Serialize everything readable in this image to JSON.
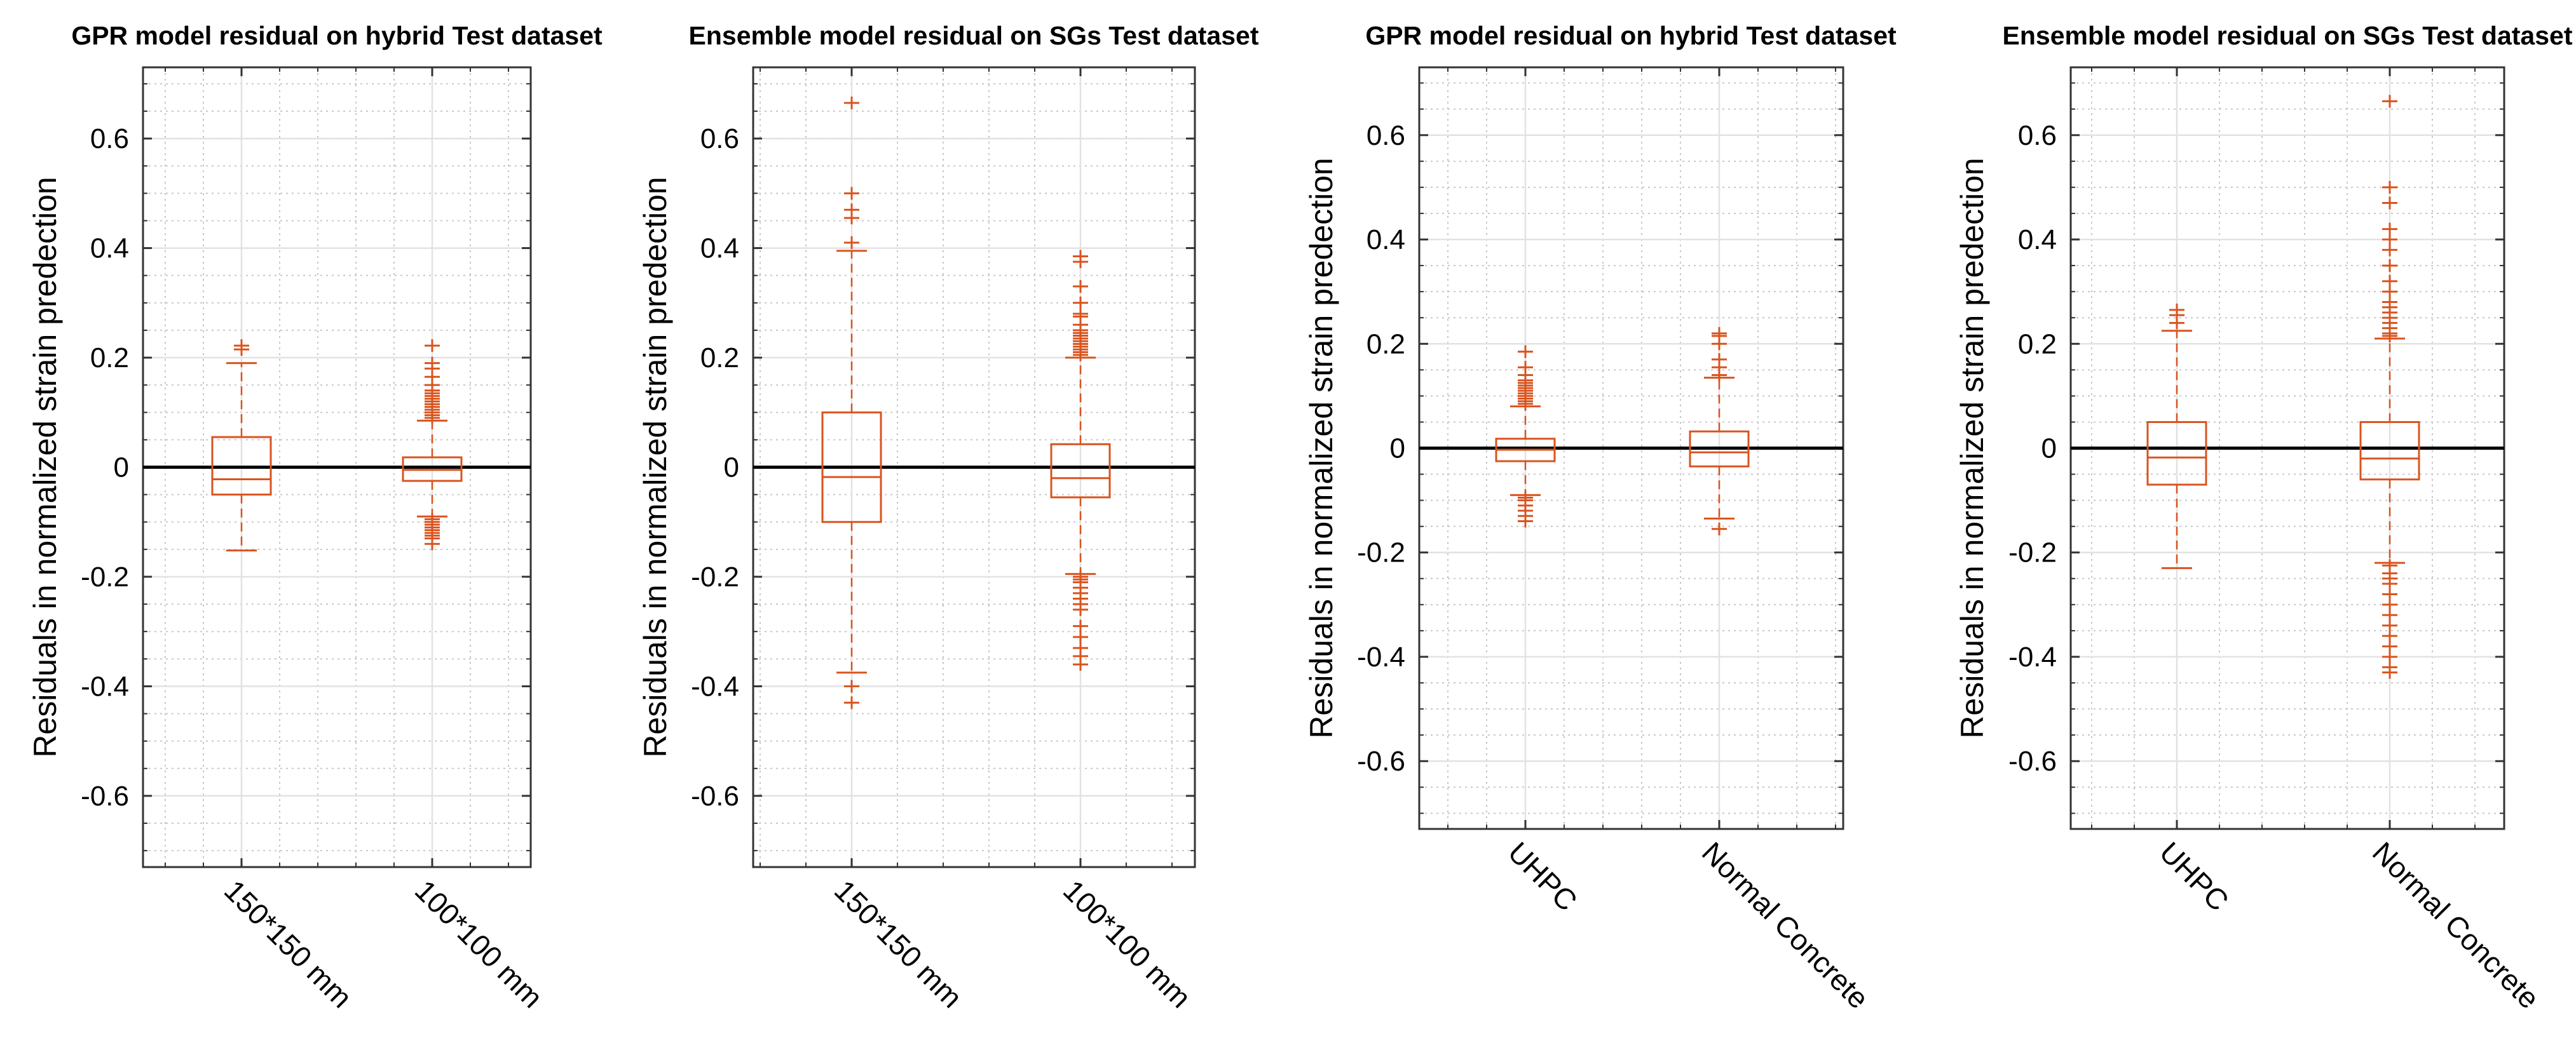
{
  "chart_data": [
    {
      "type": "box",
      "title": "GPR model residual on hybrid Test dataset",
      "ylabel": "Residuals in normalized strain predection",
      "ylim": [
        -0.73,
        0.73
      ],
      "yticks": [
        "0.6",
        "0.4",
        "0.2",
        "0",
        "-0.2",
        "-0.4",
        "-0.6"
      ],
      "grid": true,
      "color": "#d9531e",
      "categories": [
        "150*150 mm",
        "100*100 mm"
      ],
      "boxes": [
        {
          "name": "150*150 mm",
          "q1": -0.05,
          "median": -0.022,
          "q3": 0.055,
          "whisker_low": -0.152,
          "whisker_high": 0.19,
          "outliers": [
            0.215,
            0.222
          ]
        },
        {
          "name": "100*100 mm",
          "q1": -0.025,
          "median": -0.005,
          "q3": 0.018,
          "whisker_low": -0.09,
          "whisker_high": 0.085,
          "outliers": [
            0.09,
            0.095,
            0.1,
            0.105,
            0.11,
            0.115,
            0.12,
            0.125,
            0.13,
            0.135,
            0.14,
            0.15,
            0.165,
            0.18,
            0.19,
            0.222,
            -0.095,
            -0.1,
            -0.105,
            -0.11,
            -0.115,
            -0.12,
            -0.125,
            -0.13,
            -0.14
          ]
        }
      ]
    },
    {
      "type": "box",
      "title": "Ensemble model residual on SGs Test dataset",
      "ylabel": "Residuals in normalized strain predection",
      "ylim": [
        -0.73,
        0.73
      ],
      "yticks": [
        "0.6",
        "0.4",
        "0.2",
        "0",
        "-0.2",
        "-0.4",
        "-0.6"
      ],
      "grid": true,
      "color": "#d9531e",
      "categories": [
        "150*150 mm",
        "100*100 mm"
      ],
      "boxes": [
        {
          "name": "150*150 mm",
          "q1": -0.1,
          "median": -0.018,
          "q3": 0.1,
          "whisker_low": -0.375,
          "whisker_high": 0.395,
          "outliers": [
            0.41,
            0.455,
            0.47,
            0.5,
            0.665,
            -0.4,
            -0.43
          ]
        },
        {
          "name": "100*100 mm",
          "q1": -0.055,
          "median": -0.02,
          "q3": 0.042,
          "whisker_low": -0.195,
          "whisker_high": 0.2,
          "outliers": [
            0.205,
            0.21,
            0.215,
            0.22,
            0.225,
            0.23,
            0.235,
            0.24,
            0.245,
            0.25,
            0.26,
            0.275,
            0.28,
            0.3,
            0.33,
            0.375,
            0.385,
            -0.2,
            -0.205,
            -0.21,
            -0.22,
            -0.23,
            -0.24,
            -0.25,
            -0.26,
            -0.29,
            -0.31,
            -0.33,
            -0.345,
            -0.36
          ]
        }
      ]
    },
    {
      "type": "box",
      "title": "GPR model residual on hybrid Test dataset",
      "ylabel": "Residuals in normalized strain predection",
      "ylim": [
        -0.73,
        0.73
      ],
      "yticks": [
        "0.6",
        "0.4",
        "0.2",
        "0",
        "-0.2",
        "-0.4",
        "-0.6"
      ],
      "grid": true,
      "color": "#d9531e",
      "categories": [
        "UHPC",
        "Normal Concrete"
      ],
      "boxes": [
        {
          "name": "UHPC",
          "q1": -0.025,
          "median": -0.003,
          "q3": 0.018,
          "whisker_low": -0.09,
          "whisker_high": 0.08,
          "outliers": [
            0.085,
            0.09,
            0.095,
            0.1,
            0.105,
            0.11,
            0.115,
            0.12,
            0.125,
            0.13,
            0.14,
            0.155,
            0.185,
            -0.095,
            -0.1,
            -0.11,
            -0.12,
            -0.13,
            -0.14
          ]
        },
        {
          "name": "Normal Concrete",
          "q1": -0.035,
          "median": -0.008,
          "q3": 0.032,
          "whisker_low": -0.135,
          "whisker_high": 0.135,
          "outliers": [
            0.14,
            0.155,
            0.17,
            0.2,
            0.215,
            0.22,
            -0.155
          ]
        }
      ]
    },
    {
      "type": "box",
      "title": "Ensemble model residual on SGs Test dataset",
      "ylabel": "Residuals in normalized strain predection",
      "ylim": [
        -0.73,
        0.73
      ],
      "yticks": [
        "0.6",
        "0.4",
        "0.2",
        "0",
        "-0.2",
        "-0.4",
        "-0.6"
      ],
      "grid": true,
      "color": "#d9531e",
      "categories": [
        "UHPC",
        "Normal Concrete"
      ],
      "boxes": [
        {
          "name": "UHPC",
          "q1": -0.07,
          "median": -0.018,
          "q3": 0.05,
          "whisker_low": -0.23,
          "whisker_high": 0.225,
          "outliers": [
            0.24,
            0.255,
            0.265
          ]
        },
        {
          "name": "Normal Concrete",
          "q1": -0.06,
          "median": -0.02,
          "q3": 0.05,
          "whisker_low": -0.22,
          "whisker_high": 0.21,
          "outliers": [
            0.215,
            0.22,
            0.23,
            0.24,
            0.25,
            0.26,
            0.27,
            0.28,
            0.3,
            0.32,
            0.35,
            0.38,
            0.4,
            0.42,
            0.47,
            0.5,
            0.665,
            -0.225,
            -0.24,
            -0.25,
            -0.26,
            -0.28,
            -0.3,
            -0.32,
            -0.34,
            -0.36,
            -0.38,
            -0.4,
            -0.42,
            -0.43
          ]
        }
      ]
    }
  ]
}
